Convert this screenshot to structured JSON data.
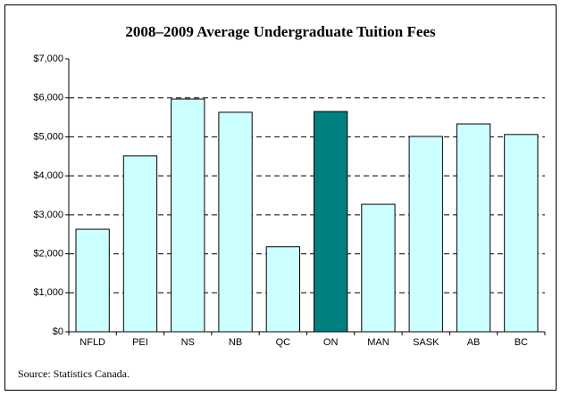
{
  "chart_data": {
    "type": "bar",
    "title": "2008–2009 Average Undergraduate Tuition Fees",
    "source": "Source: Statistics Canada.",
    "categories": [
      "NFLD",
      "PEI",
      "NS",
      "NB",
      "QC",
      "ON",
      "MAN",
      "SASK",
      "AB",
      "BC"
    ],
    "values": [
      2630,
      4510,
      5970,
      5630,
      2180,
      5650,
      3270,
      5010,
      5330,
      5060
    ],
    "colors": [
      "#ccffff",
      "#ccffff",
      "#ccffff",
      "#ccffff",
      "#ccffff",
      "#008080",
      "#ccffff",
      "#ccffff",
      "#ccffff",
      "#ccffff"
    ],
    "ylim": [
      0,
      7000
    ],
    "yticks": [
      {
        "value": 0,
        "label": "$0"
      },
      {
        "value": 1000,
        "label": "$1,000"
      },
      {
        "value": 2000,
        "label": "$2,000"
      },
      {
        "value": 3000,
        "label": "$3,000"
      },
      {
        "value": 4000,
        "label": "$4,000"
      },
      {
        "value": 5000,
        "label": "$5,000"
      },
      {
        "value": 6000,
        "label": "$6,000"
      },
      {
        "value": 7000,
        "label": "$7,000"
      }
    ],
    "grid": true
  }
}
